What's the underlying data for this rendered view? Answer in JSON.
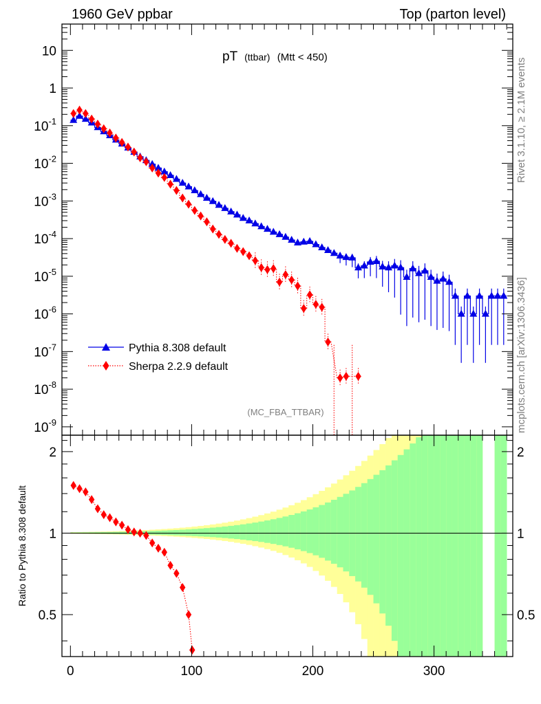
{
  "header": {
    "left": "1960 GeV ppbar",
    "right": "Top (parton level)"
  },
  "title": {
    "main": "pT",
    "sub1": "(ttbar)",
    "sub2": "(Mtt < 450)"
  },
  "side_labels": {
    "rivet": "Rivet 3.1.10, ≥ 2.1M events",
    "mcplots": "mcplots.cern.ch [arXiv:1306.3436]"
  },
  "analysis_tag": "(MC_FBA_TTBAR)",
  "colors": {
    "pythia": "#0000e6",
    "sherpa": "#ff0000",
    "band_inner": "#99ff99",
    "band_outer": "#ffff99"
  },
  "chart_data": [
    {
      "type": "scatter",
      "title": "pT (ttbar) (Mtt < 450)",
      "xlim": [
        -7,
        365
      ],
      "ylim": [
        6e-10,
        50
      ],
      "yscale": "log",
      "ytick_labels": [
        "10",
        "1",
        "10^-1",
        "10^-2",
        "10^-3",
        "10^-4",
        "10^-5",
        "10^-6",
        "10^-7",
        "10^-8",
        "10^-9"
      ],
      "legend_position": "lower-left",
      "series": [
        {
          "name": "Pythia 8.308 default",
          "marker": "triangle",
          "line": "solid",
          "x": [
            2.5,
            7.5,
            12.5,
            17.5,
            22.5,
            27.5,
            32.5,
            37.5,
            42.5,
            47.5,
            52.5,
            57.5,
            62.5,
            67.5,
            72.5,
            77.5,
            82.5,
            87.5,
            92.5,
            97.5,
            102.5,
            107.5,
            112.5,
            117.5,
            122.5,
            127.5,
            132.5,
            137.5,
            142.5,
            147.5,
            152.5,
            157.5,
            162.5,
            167.5,
            172.5,
            177.5,
            182.5,
            187.5,
            192.5,
            197.5,
            202.5,
            207.5,
            212.5,
            217.5,
            222.5,
            227.5,
            232.5,
            237.5,
            242.5,
            247.5,
            252.5,
            257.5,
            262.5,
            267.5,
            272.5,
            277.5,
            282.5,
            287.5,
            292.5,
            297.5,
            302.5,
            307.5,
            312.5,
            317.5,
            322.5,
            327.5,
            332.5,
            337.5,
            342.5,
            347.5,
            352.5,
            357.5
          ],
          "y": [
            0.14,
            0.18,
            0.15,
            0.12,
            0.09,
            0.07,
            0.055,
            0.042,
            0.033,
            0.026,
            0.02,
            0.015,
            0.012,
            0.0095,
            0.0075,
            0.006,
            0.0048,
            0.0038,
            0.003,
            0.0024,
            0.0019,
            0.0015,
            0.0012,
            0.00098,
            0.00078,
            0.00064,
            0.00052,
            0.00043,
            0.00035,
            0.0003,
            0.00025,
            0.00021,
            0.00018,
            0.00015,
            0.00013,
            0.00011,
            9.2e-05,
            7.8e-05,
            8.2e-05,
            8.5e-05,
            7e-05,
            5.8e-05,
            4.9e-05,
            4.1e-05,
            3.5e-05,
            3.2e-05,
            3.1e-05,
            1.7e-05,
            1.9e-05,
            2.4e-05,
            2.5e-05,
            1.8e-05,
            1.7e-05,
            1.9e-05,
            1.7e-05,
            9.5e-06,
            1.6e-05,
            1.2e-05,
            1.4e-05,
            9.5e-06,
            7.5e-06,
            8.5e-06,
            7e-06,
            3e-06,
            1e-06,
            3e-06,
            1e-06,
            3e-06,
            1e-06,
            3e-06,
            3e-06,
            3e-06
          ]
        },
        {
          "name": "Sherpa 2.2.9 default",
          "marker": "diamond",
          "line": "dotted",
          "x": [
            2.5,
            7.5,
            12.5,
            17.5,
            22.5,
            27.5,
            32.5,
            37.5,
            42.5,
            47.5,
            52.5,
            57.5,
            62.5,
            67.5,
            72.5,
            77.5,
            82.5,
            87.5,
            92.5,
            97.5,
            102.5,
            107.5,
            112.5,
            117.5,
            122.5,
            127.5,
            132.5,
            137.5,
            142.5,
            147.5,
            152.5,
            157.5,
            162.5,
            167.5,
            172.5,
            177.5,
            182.5,
            187.5,
            192.5,
            197.5,
            202.5,
            207.5,
            212.5,
            222.5,
            227.5,
            237.5
          ],
          "y": [
            0.21,
            0.26,
            0.21,
            0.15,
            0.11,
            0.083,
            0.064,
            0.047,
            0.036,
            0.027,
            0.02,
            0.014,
            0.011,
            0.0075,
            0.0055,
            0.0042,
            0.0028,
            0.0019,
            0.0012,
            0.00082,
            0.00056,
            0.0004,
            0.00028,
            0.00018,
            0.00013,
            9.5e-05,
            7.5e-05,
            5.5e-05,
            4.5e-05,
            3.5e-05,
            2.6e-05,
            1.7e-05,
            1.5e-05,
            1.6e-05,
            7e-06,
            1.1e-05,
            8e-06,
            5.5e-06,
            1.4e-06,
            3.2e-06,
            1.8e-06,
            1.5e-06,
            1.8e-07,
            2e-08,
            2.2e-08,
            2.2e-08
          ]
        }
      ]
    },
    {
      "type": "line",
      "ylabel": "Ratio to Pythia 8.308 default",
      "xlabel": "",
      "xlim": [
        -7,
        365
      ],
      "ylim": [
        0.35,
        2.3
      ],
      "xtick_labels": [
        "0",
        "100",
        "200",
        "300"
      ],
      "ytick_labels": [
        "0.5",
        "1",
        "2"
      ],
      "reference_line": 1,
      "series": [
        {
          "name": "Sherpa 2.2.9 default",
          "x": [
            2.5,
            7.5,
            12.5,
            17.5,
            22.5,
            27.5,
            32.5,
            37.5,
            42.5,
            47.5,
            52.5,
            57.5,
            62.5,
            67.5,
            72.5,
            77.5,
            82.5,
            87.5,
            92.5,
            97.5,
            100.5
          ],
          "y": [
            1.5,
            1.46,
            1.42,
            1.33,
            1.23,
            1.17,
            1.14,
            1.1,
            1.07,
            1.03,
            1.01,
            1.0,
            0.98,
            0.92,
            0.88,
            0.85,
            0.76,
            0.71,
            0.63,
            0.5,
            0.37
          ]
        }
      ]
    }
  ]
}
